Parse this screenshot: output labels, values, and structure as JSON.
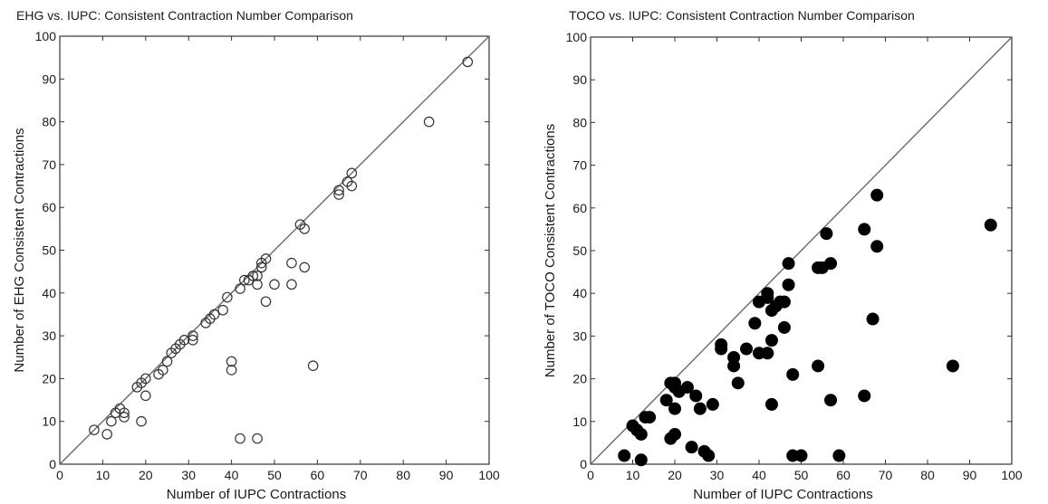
{
  "chart_data": [
    {
      "type": "scatter",
      "title": "EHG vs. IUPC: Consistent Contraction Number Comparison",
      "xlabel": "Number of IUPC Contractions",
      "ylabel": "Number of EHG Consistent Contractions",
      "xlim": [
        0,
        100
      ],
      "ylim": [
        0,
        100
      ],
      "xticks": [
        "0",
        "10",
        "20",
        "30",
        "40",
        "50",
        "60",
        "70",
        "80",
        "90",
        "100"
      ],
      "yticks": [
        "0",
        "10",
        "20",
        "30",
        "40",
        "50",
        "60",
        "70",
        "80",
        "90",
        "100"
      ],
      "marker": "open-circle",
      "reference_line": "y = x",
      "points": [
        [
          8,
          8
        ],
        [
          11,
          7
        ],
        [
          12,
          10
        ],
        [
          13,
          12
        ],
        [
          14,
          13
        ],
        [
          15,
          12
        ],
        [
          15,
          11
        ],
        [
          18,
          18
        ],
        [
          19,
          10
        ],
        [
          19,
          19
        ],
        [
          20,
          20
        ],
        [
          20,
          16
        ],
        [
          23,
          21
        ],
        [
          24,
          22
        ],
        [
          25,
          24
        ],
        [
          26,
          26
        ],
        [
          27,
          27
        ],
        [
          28,
          28
        ],
        [
          29,
          29
        ],
        [
          31,
          30
        ],
        [
          31,
          29
        ],
        [
          34,
          33
        ],
        [
          35,
          34
        ],
        [
          36,
          35
        ],
        [
          38,
          36
        ],
        [
          39,
          39
        ],
        [
          40,
          24
        ],
        [
          40,
          22
        ],
        [
          42,
          41
        ],
        [
          42,
          6
        ],
        [
          43,
          43
        ],
        [
          44,
          43
        ],
        [
          45,
          44
        ],
        [
          46,
          42
        ],
        [
          46,
          44
        ],
        [
          47,
          46
        ],
        [
          47,
          47
        ],
        [
          48,
          48
        ],
        [
          48,
          38
        ],
        [
          50,
          42
        ],
        [
          54,
          47
        ],
        [
          54,
          42
        ],
        [
          56,
          56
        ],
        [
          57,
          55
        ],
        [
          57,
          46
        ],
        [
          59,
          23
        ],
        [
          46,
          6
        ],
        [
          65,
          63
        ],
        [
          65,
          64
        ],
        [
          67,
          66
        ],
        [
          68,
          68
        ],
        [
          68,
          65
        ],
        [
          86,
          80
        ],
        [
          95,
          94
        ]
      ]
    },
    {
      "type": "scatter",
      "title": "TOCO vs. IUPC: Consistent Contraction Number Comparison",
      "xlabel": "Number of IUPC Contractions",
      "ylabel": "Number of TOCO Consistent Contractions",
      "xlim": [
        0,
        100
      ],
      "ylim": [
        0,
        100
      ],
      "xticks": [
        "0",
        "10",
        "20",
        "30",
        "40",
        "50",
        "60",
        "70",
        "80",
        "90",
        "100"
      ],
      "yticks": [
        "0",
        "10",
        "20",
        "30",
        "40",
        "50",
        "60",
        "70",
        "80",
        "90",
        "100"
      ],
      "marker": "filled-circle",
      "reference_line": "y = x",
      "points": [
        [
          8,
          2
        ],
        [
          10,
          9
        ],
        [
          11,
          8
        ],
        [
          12,
          7
        ],
        [
          12,
          1
        ],
        [
          13,
          11
        ],
        [
          14,
          11
        ],
        [
          18,
          15
        ],
        [
          19,
          19
        ],
        [
          19,
          6
        ],
        [
          20,
          19
        ],
        [
          20,
          7
        ],
        [
          20,
          18
        ],
        [
          20,
          13
        ],
        [
          21,
          17
        ],
        [
          23,
          18
        ],
        [
          24,
          4
        ],
        [
          25,
          16
        ],
        [
          26,
          13
        ],
        [
          27,
          3
        ],
        [
          28,
          2
        ],
        [
          29,
          14
        ],
        [
          31,
          28
        ],
        [
          31,
          27
        ],
        [
          34,
          23
        ],
        [
          34,
          25
        ],
        [
          35,
          19
        ],
        [
          37,
          27
        ],
        [
          39,
          33
        ],
        [
          40,
          38
        ],
        [
          40,
          26
        ],
        [
          42,
          40
        ],
        [
          42,
          39
        ],
        [
          42,
          26
        ],
        [
          43,
          36
        ],
        [
          43,
          29
        ],
        [
          43,
          14
        ],
        [
          44,
          37
        ],
        [
          45,
          38
        ],
        [
          46,
          38
        ],
        [
          46,
          32
        ],
        [
          47,
          47
        ],
        [
          47,
          42
        ],
        [
          48,
          21
        ],
        [
          48,
          2
        ],
        [
          50,
          2
        ],
        [
          54,
          46
        ],
        [
          54,
          23
        ],
        [
          55,
          46
        ],
        [
          56,
          54
        ],
        [
          57,
          47
        ],
        [
          57,
          15
        ],
        [
          59,
          2
        ],
        [
          65,
          55
        ],
        [
          65,
          16
        ],
        [
          67,
          34
        ],
        [
          68,
          63
        ],
        [
          68,
          51
        ],
        [
          86,
          23
        ],
        [
          95,
          56
        ]
      ]
    }
  ]
}
